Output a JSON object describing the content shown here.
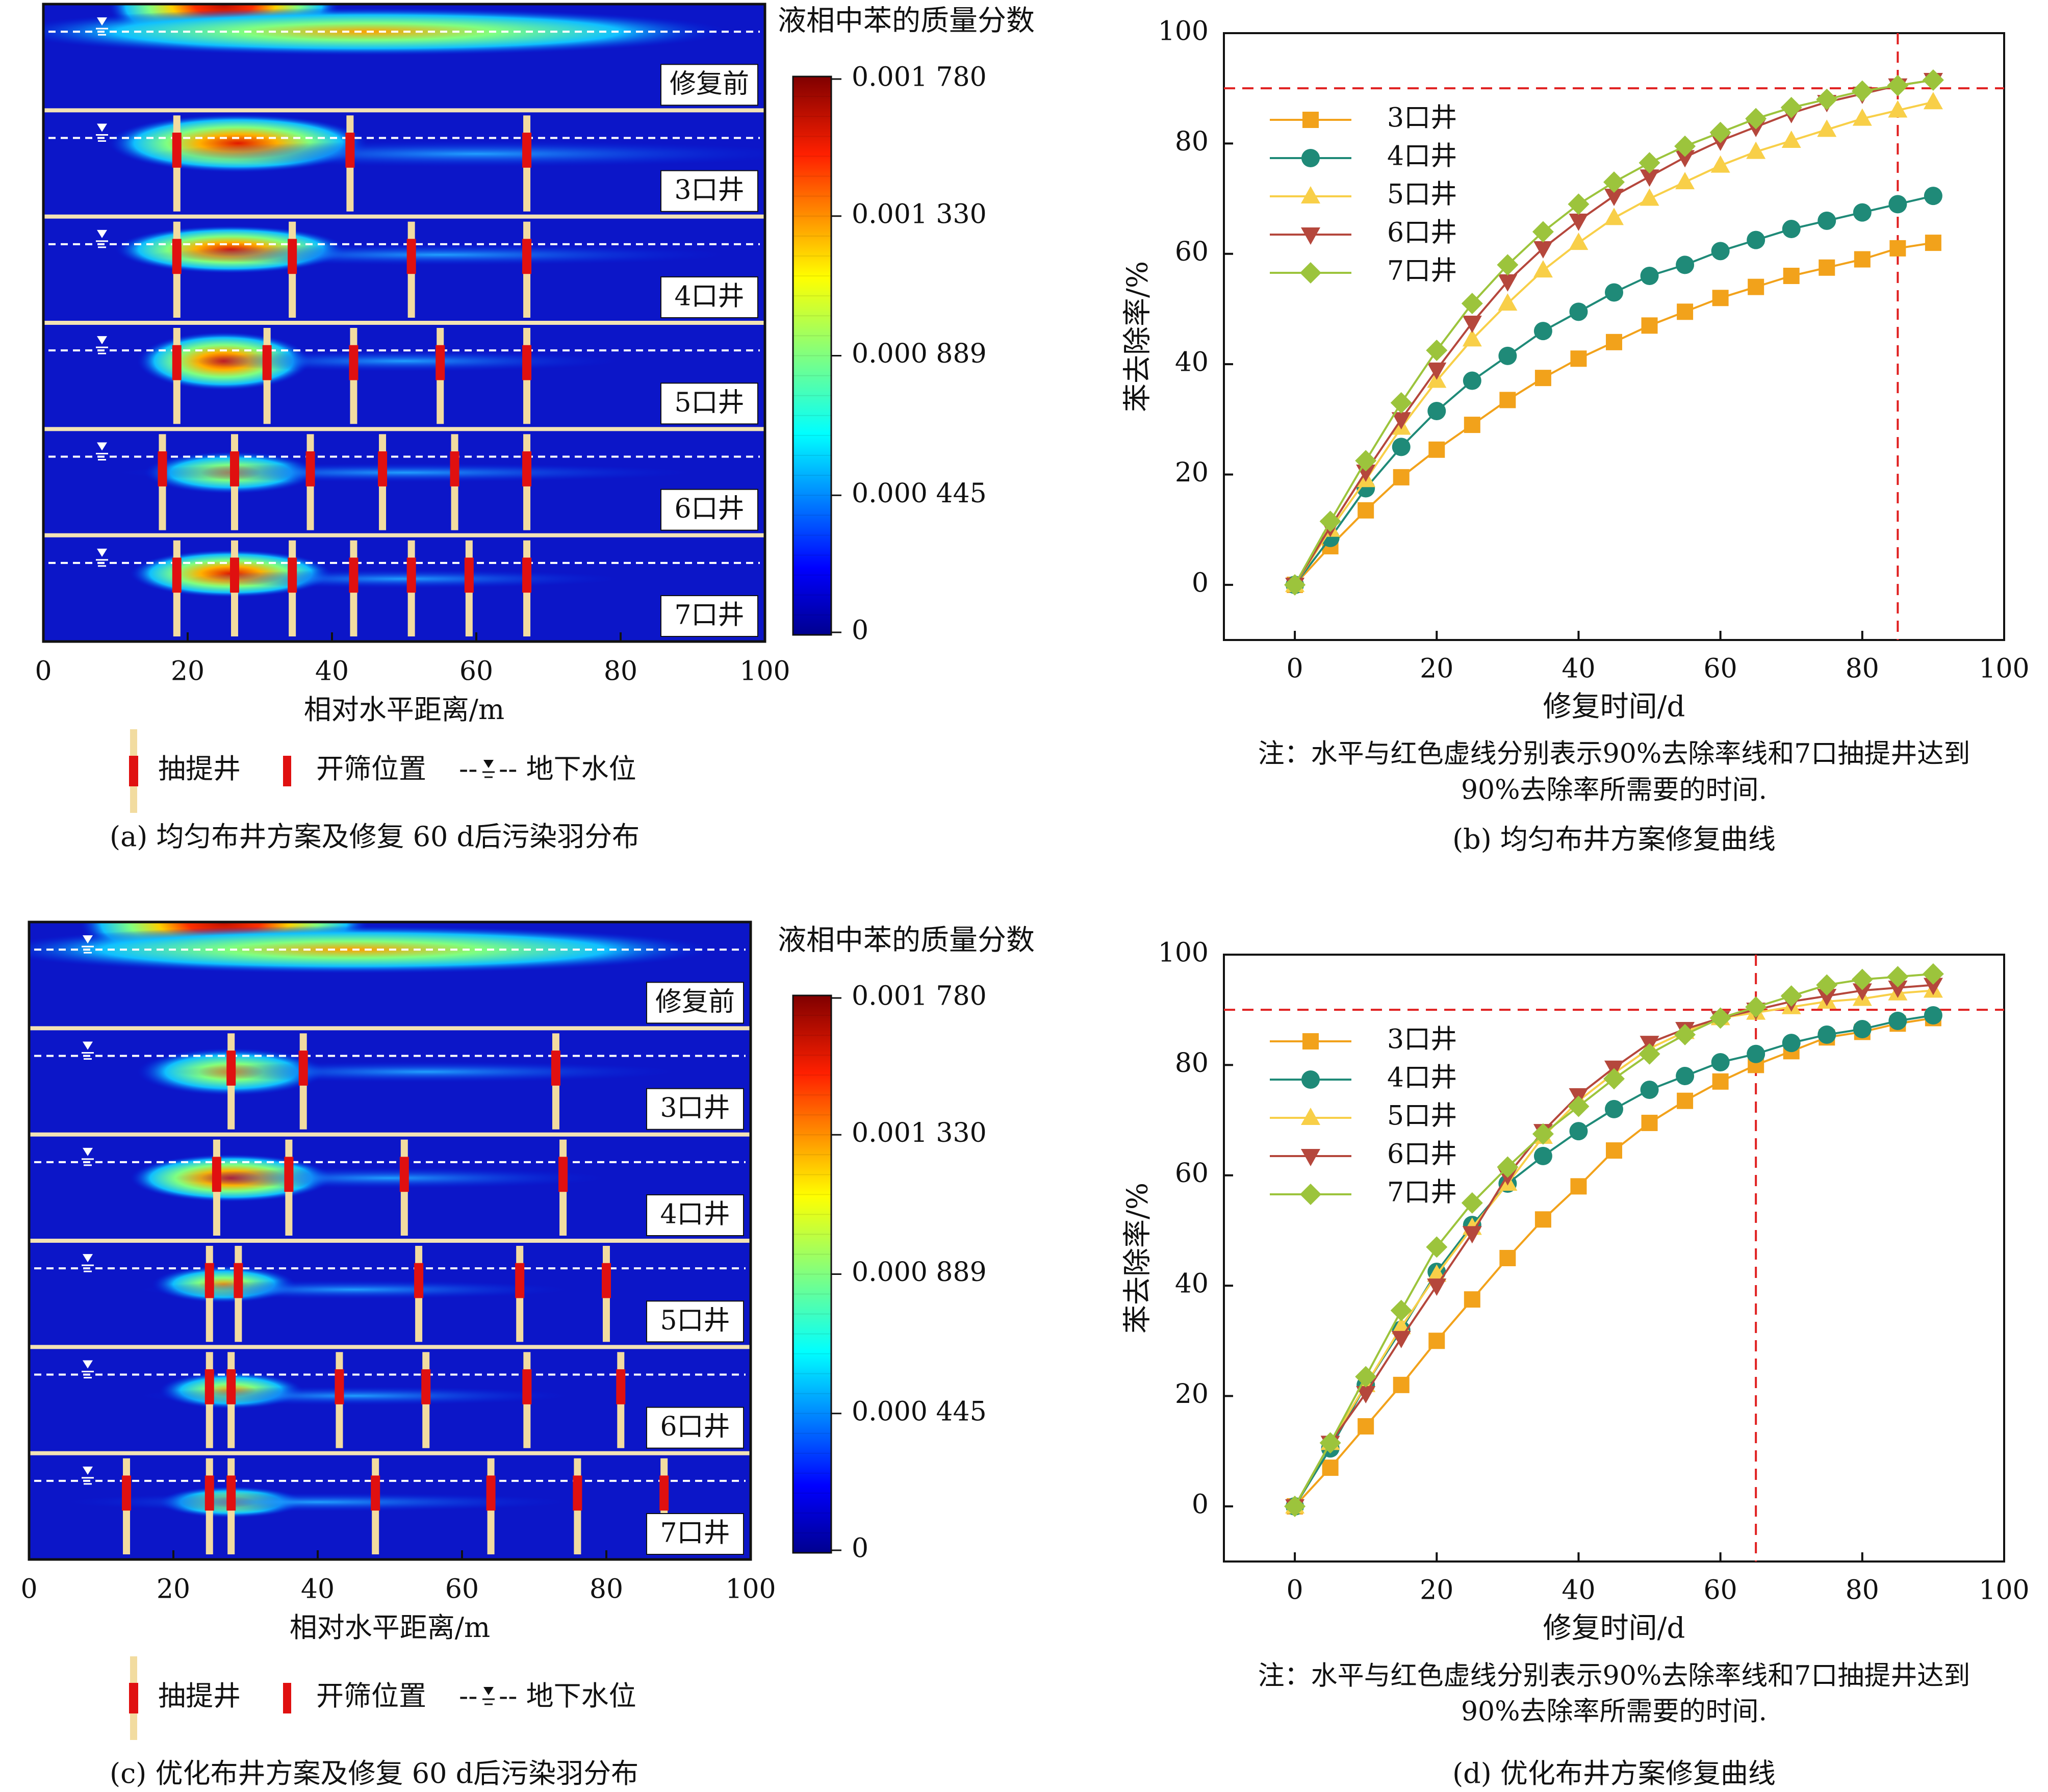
{
  "plume_panels": [
    {
      "caption": "(a) 均匀布井方案及修复 60 d后污染羽分布",
      "colorbar_title": "液相中苯的质量分数",
      "colorbar_ticks": [
        "0.001 780",
        "0.001 330",
        "0.000 889",
        "0.000 445",
        "0"
      ],
      "x_ticks": [
        "0",
        "20",
        "40",
        "60",
        "80",
        "100"
      ],
      "xlabel": "相对水平距离/m",
      "strips": [
        {
          "label": "修复前",
          "wells": []
        },
        {
          "label": "3口井",
          "wells": [
            18.5,
            42.5,
            67
          ]
        },
        {
          "label": "4口井",
          "wells": [
            18.5,
            34.5,
            51,
            67
          ]
        },
        {
          "label": "5口井",
          "wells": [
            18.5,
            31,
            43,
            55,
            67
          ]
        },
        {
          "label": "6口井",
          "wells": [
            16.5,
            26.5,
            37,
            47,
            57,
            67
          ]
        },
        {
          "label": "7口井",
          "wells": [
            18.5,
            26.5,
            34.5,
            43,
            51,
            59,
            67
          ]
        }
      ],
      "legend": {
        "well": "抽提井",
        "screen": "开筛位置",
        "water_table_prefix": "--",
        "water_table_suffix": "-- 地下水位"
      }
    },
    {
      "caption": "(c) 优化布井方案及修复 60 d后污染羽分布",
      "colorbar_title": "液相中苯的质量分数",
      "colorbar_ticks": [
        "0.001 780",
        "0.001 330",
        "0.000 889",
        "0.000 445",
        "0"
      ],
      "x_ticks": [
        "0",
        "20",
        "40",
        "60",
        "80",
        "100"
      ],
      "xlabel": "相对水平距离/m",
      "strips": [
        {
          "label": "修复前",
          "wells": []
        },
        {
          "label": "3口井",
          "wells": [
            28,
            38,
            73
          ]
        },
        {
          "label": "4口井",
          "wells": [
            26,
            36,
            52,
            74
          ]
        },
        {
          "label": "5口井",
          "wells": [
            25,
            29,
            54,
            68,
            80
          ]
        },
        {
          "label": "6口井",
          "wells": [
            25,
            28,
            43,
            55,
            69,
            82
          ]
        },
        {
          "label": "7口井",
          "wells": [
            13.5,
            25,
            28,
            48,
            64,
            76,
            88
          ]
        }
      ],
      "legend": {
        "well": "抽提井",
        "screen": "开筛位置",
        "water_table_prefix": "--",
        "water_table_suffix": "-- 地下水位"
      }
    }
  ],
  "chart_data": [
    {
      "type": "line",
      "caption": "(b) 均匀布井方案修复曲线",
      "xlabel": "修复时间/d",
      "ylabel": "苯去除率/%",
      "xlim": [
        -10,
        100
      ],
      "ylim": [
        -10,
        100
      ],
      "x_ticks": [
        0,
        20,
        40,
        60,
        80,
        100
      ],
      "y_ticks": [
        0,
        20,
        40,
        60,
        80,
        100
      ],
      "x": [
        0,
        5,
        10,
        15,
        20,
        25,
        30,
        35,
        40,
        45,
        50,
        55,
        60,
        65,
        70,
        75,
        80,
        85,
        90
      ],
      "hline": 90,
      "vline": 85,
      "note_line1": "注：水平与红色虚线分别表示90%去除率线和7口抽提井达到",
      "note_line2": "90%去除率所需要的时间.",
      "legend_position": "top-left",
      "series": [
        {
          "name": "3口井",
          "color": "#f2a21b",
          "marker": "square",
          "values": [
            0,
            7,
            13.5,
            19.5,
            24.5,
            29,
            33.5,
            37.5,
            41,
            44,
            47,
            49.5,
            52,
            54,
            56,
            57.5,
            59,
            61,
            62
          ]
        },
        {
          "name": "4口井",
          "color": "#1f8a78",
          "marker": "circle",
          "values": [
            0,
            8.5,
            17.5,
            25,
            31.5,
            37,
            41.5,
            46,
            49.5,
            53,
            56,
            58,
            60.5,
            62.5,
            64.5,
            66,
            67.5,
            69,
            70.5
          ]
        },
        {
          "name": "5口井",
          "color": "#f8cf48",
          "marker": "triangle-up",
          "values": [
            0,
            10,
            19,
            28.5,
            37,
            44.5,
            51,
            57,
            62,
            66.5,
            70,
            73,
            76,
            78.5,
            80.5,
            82.5,
            84.5,
            86,
            87.5
          ]
        },
        {
          "name": "6口井",
          "color": "#b5473c",
          "marker": "triangle-down",
          "values": [
            0,
            10.5,
            20.5,
            30,
            39,
            47.5,
            55,
            61,
            66,
            70.5,
            74,
            77.5,
            80.5,
            83,
            85.5,
            87.5,
            89,
            90.5,
            91.5
          ]
        },
        {
          "name": "7口井",
          "color": "#9cc43c",
          "marker": "diamond",
          "values": [
            0,
            11.5,
            22.5,
            33,
            42.5,
            51,
            58,
            64,
            69,
            73,
            76.5,
            79.5,
            82,
            84.5,
            86.5,
            88,
            89.5,
            90.5,
            91.5
          ]
        }
      ]
    },
    {
      "type": "line",
      "caption": "(d) 优化布井方案修复曲线",
      "xlabel": "修复时间/d",
      "ylabel": "苯去除率/%",
      "xlim": [
        -10,
        100
      ],
      "ylim": [
        -10,
        100
      ],
      "x_ticks": [
        0,
        20,
        40,
        60,
        80,
        100
      ],
      "y_ticks": [
        0,
        20,
        40,
        60,
        80,
        100
      ],
      "x": [
        0,
        5,
        10,
        15,
        20,
        25,
        30,
        35,
        40,
        45,
        50,
        55,
        60,
        65,
        70,
        75,
        80,
        85,
        90
      ],
      "hline": 90,
      "vline": 65,
      "note_line1": "注：水平与红色虚线分别表示90%去除率线和7口抽提井达到",
      "note_line2": "90%去除率所需要的时间.",
      "legend_position": "top-left",
      "series": [
        {
          "name": "3口井",
          "color": "#f2a21b",
          "marker": "square",
          "values": [
            0,
            7,
            14.5,
            22,
            30,
            37.5,
            45,
            52,
            58,
            64.5,
            69.5,
            73.5,
            77,
            80,
            82.5,
            85,
            86,
            87.5,
            88.5
          ]
        },
        {
          "name": "4口井",
          "color": "#1f8a78",
          "marker": "circle",
          "values": [
            0,
            10.5,
            22,
            32,
            42.5,
            51,
            58.5,
            63.5,
            68,
            72,
            75.5,
            78,
            80.5,
            82,
            84,
            85.5,
            86.5,
            88,
            89
          ]
        },
        {
          "name": "5口井",
          "color": "#f8cf48",
          "marker": "triangle-up",
          "values": [
            0,
            11.5,
            22,
            32.5,
            42,
            50.5,
            58.5,
            67,
            73.5,
            78.5,
            83,
            86,
            88.5,
            89.5,
            90.5,
            91.5,
            92,
            93,
            93.5
          ]
        },
        {
          "name": "6口井",
          "color": "#b5473c",
          "marker": "triangle-down",
          "values": [
            0,
            11.5,
            20.5,
            30.5,
            40,
            49.5,
            60,
            68,
            74.5,
            79.5,
            84,
            86.5,
            88.5,
            90,
            91.5,
            92.5,
            93.5,
            94,
            94.5
          ]
        },
        {
          "name": "7口井",
          "color": "#9cc43c",
          "marker": "diamond",
          "values": [
            0,
            11.5,
            23.5,
            35.5,
            47,
            55,
            61.5,
            67.5,
            72.5,
            77.5,
            82,
            85.5,
            88.5,
            90.5,
            92.5,
            94.5,
            95.5,
            96,
            96.5
          ]
        }
      ]
    }
  ]
}
